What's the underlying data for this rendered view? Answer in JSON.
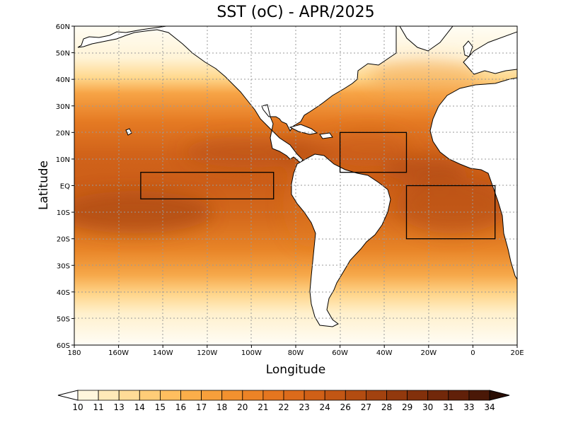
{
  "title": "SST (oC) - APR/2025",
  "xlabel": "Longitude",
  "ylabel": "Latitude",
  "map": {
    "lon_range": [
      180,
      380
    ],
    "lat_range": [
      -60,
      60
    ],
    "grid": true,
    "x_ticks": [
      {
        "lon": 180,
        "label": "180"
      },
      {
        "lon": 200,
        "label": "160W"
      },
      {
        "lon": 220,
        "label": "140W"
      },
      {
        "lon": 240,
        "label": "120W"
      },
      {
        "lon": 260,
        "label": "100W"
      },
      {
        "lon": 280,
        "label": "80W"
      },
      {
        "lon": 300,
        "label": "60W"
      },
      {
        "lon": 320,
        "label": "40W"
      },
      {
        "lon": 340,
        "label": "20W"
      },
      {
        "lon": 360,
        "label": "0"
      },
      {
        "lon": 380,
        "label": "20E"
      }
    ],
    "y_ticks": [
      {
        "lat": 60,
        "label": "60N"
      },
      {
        "lat": 50,
        "label": "50N"
      },
      {
        "lat": 40,
        "label": "40N"
      },
      {
        "lat": 30,
        "label": "30N"
      },
      {
        "lat": 20,
        "label": "20N"
      },
      {
        "lat": 10,
        "label": "10N"
      },
      {
        "lat": 0,
        "label": "EQ"
      },
      {
        "lat": -10,
        "label": "10S"
      },
      {
        "lat": -20,
        "label": "20S"
      },
      {
        "lat": -30,
        "label": "30S"
      },
      {
        "lat": -40,
        "label": "40S"
      },
      {
        "lat": -50,
        "label": "50S"
      },
      {
        "lat": -60,
        "label": "60S"
      }
    ],
    "region_boxes": [
      {
        "name": "nino-region",
        "lon": [
          210,
          270
        ],
        "lat": [
          -5,
          5
        ]
      },
      {
        "name": "tropical-north-atlantic",
        "lon": [
          300,
          330
        ],
        "lat": [
          5,
          20
        ]
      },
      {
        "name": "tropical-south-atlantic",
        "lon": [
          330,
          370
        ],
        "lat": [
          -20,
          0
        ]
      }
    ]
  },
  "colorbar": {
    "levels": [
      "10",
      "11",
      "13",
      "14",
      "15",
      "16",
      "17",
      "18",
      "20",
      "21",
      "22",
      "23",
      "24",
      "26",
      "27",
      "28",
      "29",
      "30",
      "31",
      "33",
      "34"
    ],
    "colors": [
      "#ffffff",
      "#fff6dc",
      "#ffe9b8",
      "#ffdc97",
      "#ffcd78",
      "#ffbe5f",
      "#fbae4a",
      "#f79f3b",
      "#f2912f",
      "#ec8326",
      "#e5761f",
      "#dc6b1b",
      "#d06017",
      "#c25614",
      "#b34c11",
      "#a2420f",
      "#92390d",
      "#82300b",
      "#72280a",
      "#612009",
      "#4a1807",
      "#2a0e04"
    ]
  }
}
